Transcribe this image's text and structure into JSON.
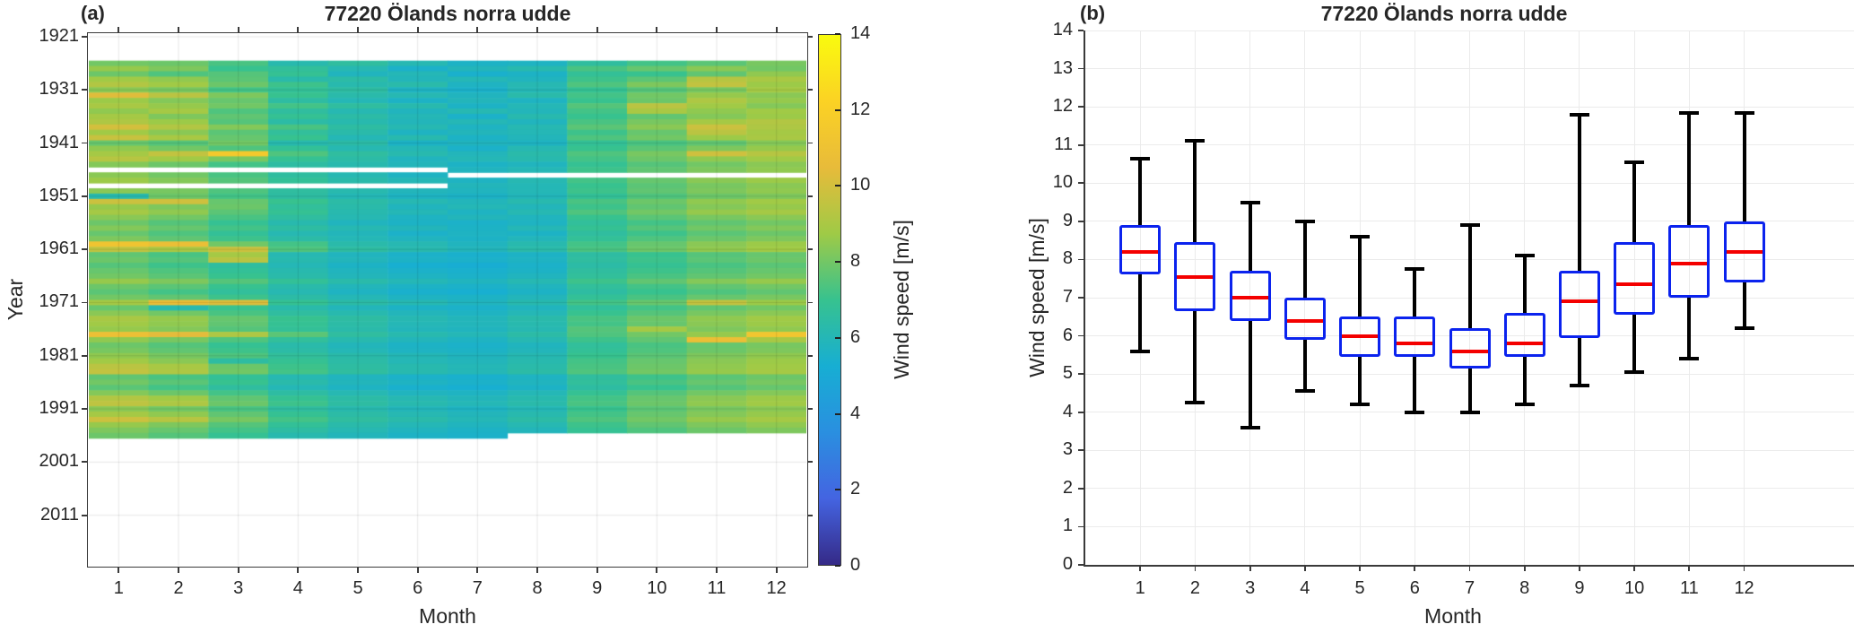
{
  "figure": {
    "panel_a": {
      "corner_label": "(a)",
      "title": "77220 Ölands norra udde",
      "xlabel": "Month",
      "ylabel": "Year",
      "xtick_labels": [
        "1",
        "2",
        "3",
        "4",
        "5",
        "6",
        "7",
        "8",
        "9",
        "10",
        "11",
        "12"
      ],
      "ytick_labels": [
        "1921",
        "1931",
        "1941",
        "1951",
        "1961",
        "1971",
        "1981",
        "1991",
        "2001",
        "2011"
      ],
      "colorbar": {
        "label": "Wind speed [m/s]",
        "tick_labels": [
          "0",
          "2",
          "4",
          "6",
          "8",
          "10",
          "12",
          "14"
        ],
        "min": 0,
        "max": 14
      }
    },
    "panel_b": {
      "corner_label": "(b)",
      "title": "77220 Ölands norra udde",
      "xlabel": "Month",
      "ylabel": "Wind speed [m/s]",
      "xtick_labels": [
        "1",
        "2",
        "3",
        "4",
        "5",
        "6",
        "7",
        "8",
        "9",
        "10",
        "11",
        "12"
      ],
      "ytick_labels": [
        "0",
        "1",
        "2",
        "3",
        "4",
        "5",
        "6",
        "7",
        "8",
        "9",
        "10",
        "11",
        "12",
        "13",
        "14"
      ]
    }
  },
  "colors": {
    "box_edge": "#0b23ee",
    "median": "#f40000",
    "whisker": "#000000",
    "grid_light": "rgba(0,0,0,0.10)",
    "axis": "#3a3a3a",
    "text": "#262626",
    "parula": [
      "#352a87",
      "#4464e1",
      "#2a8fe0",
      "#17aed3",
      "#37c28f",
      "#9fca46",
      "#e8bb3a",
      "#fbd224",
      "#f9fb0e"
    ]
  },
  "chart_data": [
    {
      "type": "heatmap",
      "title": "77220 Ölands norra udde",
      "xlabel": "Month",
      "ylabel": "Year",
      "colorbar_label": "Wind speed [m/s]",
      "colormap": "parula",
      "vmin": 0,
      "vmax": 14,
      "xticks": [
        1,
        2,
        3,
        4,
        5,
        6,
        7,
        8,
        9,
        10,
        11,
        12
      ],
      "yticks": [
        1921,
        1931,
        1941,
        1951,
        1961,
        1971,
        1981,
        1991,
        2001,
        2011
      ],
      "ylim": [
        1920.5,
        2020.5
      ],
      "grid": true,
      "year_start": 1926,
      "year_end": 1996,
      "values": [
        [
          8.0,
          7.9,
          7.3,
          6.2,
          6.6,
          6.1,
          5.6,
          5.7,
          6.6,
          7.2,
          7.6,
          8.1
        ],
        [
          8.6,
          8.2,
          7.0,
          6.7,
          6.1,
          5.5,
          5.9,
          6.2,
          7.3,
          7.8,
          8.4,
          8.0
        ],
        [
          7.9,
          7.4,
          7.5,
          6.9,
          5.8,
          6.0,
          5.4,
          5.6,
          6.8,
          7.0,
          7.7,
          8.5
        ],
        [
          8.8,
          8.5,
          7.6,
          6.3,
          6.4,
          5.9,
          6.0,
          5.8,
          7.1,
          7.6,
          9.3,
          9.0
        ],
        [
          9.2,
          8.8,
          7.9,
          7.1,
          6.2,
          6.3,
          5.7,
          6.1,
          7.4,
          8.2,
          9.6,
          8.7
        ],
        [
          8.4,
          8.1,
          7.2,
          6.8,
          6.5,
          5.7,
          5.5,
          6.0,
          6.9,
          7.5,
          8.1,
          8.9
        ],
        [
          10.3,
          9.4,
          8.2,
          7.0,
          6.3,
          6.1,
          5.8,
          6.3,
          7.2,
          8.0,
          8.6,
          8.4
        ],
        [
          8.7,
          8.3,
          7.8,
          6.5,
          6.0,
          5.6,
          5.9,
          5.7,
          7.0,
          7.9,
          9.1,
          8.6
        ],
        [
          9.0,
          8.6,
          8.0,
          7.2,
          6.6,
          6.2,
          5.6,
          6.0,
          7.5,
          9.4,
          8.8,
          8.3
        ],
        [
          8.5,
          8.9,
          7.4,
          6.6,
          6.1,
          5.8,
          6.1,
          5.9,
          7.2,
          9.0,
          8.5,
          8.8
        ],
        [
          8.9,
          8.2,
          7.7,
          6.9,
          6.4,
          6.0,
          5.5,
          6.2,
          7.0,
          7.7,
          8.3,
          8.7
        ],
        [
          9.1,
          8.7,
          7.5,
          6.4,
          6.2,
          5.9,
          6.0,
          5.8,
          7.3,
          8.1,
          8.9,
          9.2
        ],
        [
          10.0,
          9.2,
          8.3,
          7.3,
          6.5,
          6.1,
          5.7,
          6.1,
          7.6,
          8.4,
          9.8,
          9.1
        ],
        [
          8.8,
          8.4,
          7.6,
          6.7,
          6.3,
          5.7,
          5.9,
          6.0,
          7.1,
          7.8,
          9.4,
          8.9
        ],
        [
          9.7,
          9.0,
          7.8,
          7.0,
          6.0,
          6.2,
          5.6,
          5.9,
          7.4,
          8.0,
          8.7,
          9.0
        ],
        [
          7.8,
          7.5,
          8.0,
          6.2,
          6.4,
          5.6,
          5.8,
          5.7,
          6.8,
          7.3,
          7.7,
          8.3
        ],
        [
          8.5,
          8.0,
          7.4,
          6.8,
          6.1,
          6.0,
          5.5,
          6.1,
          7.0,
          7.6,
          8.2,
          8.6
        ],
        [
          8.9,
          9.6,
          11.6,
          7.4,
          6.6,
          6.2,
          5.9,
          6.3,
          7.4,
          8.1,
          9.9,
          9.3
        ],
        [
          9.3,
          8.8,
          8.1,
          6.9,
          6.4,
          5.8,
          6.0,
          6.2,
          7.2,
          7.9,
          8.5,
          8.8
        ],
        [
          8.3,
          7.9,
          7.2,
          6.5,
          6.2,
          5.9,
          5.6,
          5.8,
          6.9,
          7.5,
          8.0,
          8.4
        ],
        [
          null,
          null,
          null,
          null,
          null,
          null,
          5.8,
          6.0,
          7.1,
          7.7,
          8.2,
          8.5
        ],
        [
          8.4,
          8.0,
          7.3,
          6.6,
          6.1,
          5.7,
          null,
          null,
          null,
          null,
          null,
          null
        ],
        [
          8.7,
          8.3,
          7.5,
          6.8,
          6.3,
          6.0,
          5.7,
          6.1,
          7.2,
          7.8,
          8.4,
          8.7
        ],
        [
          null,
          null,
          null,
          null,
          null,
          null,
          5.9,
          6.0,
          7.0,
          7.6,
          8.1,
          8.4
        ],
        [
          8.4,
          8.1,
          7.4,
          6.6,
          6.2,
          5.9,
          5.8,
          6.0,
          7.1,
          7.7,
          8.2,
          8.5
        ],
        [
          6.2,
          7.9,
          7.2,
          6.5,
          6.0,
          5.7,
          5.6,
          5.9,
          6.8,
          7.4,
          7.9,
          8.2
        ],
        [
          9.8,
          9.9,
          7.8,
          7.0,
          6.4,
          6.1,
          5.9,
          6.2,
          7.3,
          7.9,
          8.5,
          8.8
        ],
        [
          8.6,
          8.2,
          7.9,
          6.7,
          6.3,
          5.8,
          6.0,
          5.9,
          7.1,
          7.7,
          8.3,
          8.6
        ],
        [
          8.9,
          8.5,
          7.6,
          6.9,
          6.2,
          6.0,
          5.7,
          6.1,
          7.4,
          8.0,
          8.6,
          8.9
        ],
        [
          8.4,
          8.0,
          7.3,
          6.6,
          6.1,
          5.7,
          5.9,
          5.8,
          7.0,
          7.6,
          8.1,
          8.4
        ],
        [
          7.9,
          7.5,
          6.9,
          6.2,
          5.8,
          5.6,
          5.5,
          5.7,
          6.7,
          7.2,
          7.7,
          8.0
        ],
        [
          8.3,
          7.8,
          7.2,
          6.5,
          6.1,
          5.9,
          5.6,
          6.0,
          6.9,
          7.5,
          8.0,
          8.3
        ],
        [
          7.8,
          7.4,
          6.8,
          6.1,
          5.9,
          5.5,
          5.7,
          5.6,
          6.6,
          7.1,
          7.6,
          7.9
        ],
        [
          8.2,
          7.7,
          7.1,
          6.4,
          6.0,
          5.8,
          5.6,
          5.9,
          6.8,
          7.4,
          7.9,
          8.2
        ],
        [
          11.2,
          10.8,
          8.0,
          7.2,
          6.3,
          6.1,
          5.8,
          6.2,
          7.2,
          7.8,
          8.4,
          8.7
        ],
        [
          9.5,
          9.0,
          9.8,
          7.4,
          6.5,
          6.2,
          5.9,
          6.3,
          7.3,
          7.9,
          8.5,
          8.8
        ],
        [
          7.7,
          7.3,
          8.9,
          6.1,
          5.8,
          5.5,
          5.4,
          5.6,
          6.5,
          7.0,
          7.5,
          7.8
        ],
        [
          7.9,
          7.5,
          9.4,
          6.2,
          5.9,
          5.6,
          5.5,
          5.7,
          6.6,
          7.1,
          7.6,
          7.9
        ],
        [
          7.5,
          7.1,
          6.6,
          6.0,
          5.6,
          5.3,
          5.2,
          5.5,
          6.4,
          6.9,
          7.3,
          7.6
        ],
        [
          7.8,
          7.4,
          6.8,
          6.2,
          5.8,
          5.5,
          5.4,
          5.6,
          6.6,
          7.1,
          7.5,
          7.8
        ],
        [
          8.0,
          7.6,
          7.0,
          6.3,
          5.9,
          5.7,
          5.5,
          5.8,
          6.7,
          7.3,
          7.7,
          8.0
        ],
        [
          8.6,
          8.2,
          7.5,
          6.8,
          6.3,
          6.0,
          5.8,
          6.1,
          7.1,
          7.7,
          8.3,
          8.6
        ],
        [
          7.9,
          7.6,
          7.0,
          6.3,
          5.9,
          5.6,
          5.5,
          5.8,
          6.7,
          7.2,
          7.7,
          8.0
        ],
        [
          7.6,
          7.2,
          6.7,
          6.1,
          5.7,
          5.4,
          5.3,
          5.6,
          6.5,
          7.0,
          7.4,
          7.7
        ],
        [
          8.0,
          7.7,
          7.1,
          6.4,
          6.0,
          5.7,
          5.6,
          5.9,
          6.8,
          7.3,
          7.8,
          8.1
        ],
        [
          8.9,
          10.7,
          10.2,
          6.9,
          6.4,
          6.1,
          5.8,
          6.2,
          7.2,
          7.8,
          9.6,
          8.7
        ],
        [
          7.8,
          6.2,
          7.0,
          6.3,
          5.9,
          5.6,
          5.5,
          5.8,
          6.7,
          7.2,
          7.7,
          8.0
        ],
        [
          8.4,
          8.0,
          7.3,
          6.6,
          6.2,
          5.9,
          5.7,
          6.0,
          7.0,
          7.5,
          8.1,
          8.4
        ],
        [
          9.0,
          8.6,
          7.8,
          7.0,
          6.5,
          6.1,
          5.9,
          6.3,
          7.3,
          7.9,
          8.5,
          8.8
        ],
        [
          8.8,
          8.5,
          7.7,
          6.9,
          6.4,
          6.0,
          5.9,
          6.2,
          7.2,
          7.8,
          8.4,
          8.7
        ],
        [
          8.6,
          8.3,
          7.5,
          6.8,
          6.3,
          5.9,
          5.8,
          6.1,
          7.5,
          8.9,
          8.2,
          8.5
        ],
        [
          10.9,
          10.4,
          9.1,
          7.6,
          6.6,
          6.2,
          6.0,
          6.4,
          7.4,
          8.0,
          8.6,
          11.3
        ],
        [
          8.5,
          8.1,
          7.4,
          6.7,
          6.2,
          5.9,
          5.7,
          6.1,
          7.1,
          7.7,
          10.8,
          9.0
        ],
        [
          7.9,
          7.5,
          6.9,
          6.3,
          5.9,
          5.6,
          5.5,
          5.8,
          6.7,
          7.3,
          7.8,
          8.1
        ],
        [
          8.1,
          7.7,
          7.1,
          6.4,
          6.0,
          5.7,
          5.6,
          5.9,
          6.8,
          7.4,
          7.9,
          8.2
        ],
        [
          8.5,
          8.1,
          7.4,
          6.7,
          6.3,
          6.0,
          5.8,
          6.1,
          7.0,
          7.6,
          8.2,
          8.5
        ],
        [
          8.8,
          8.4,
          6.5,
          6.9,
          6.4,
          6.0,
          5.9,
          6.2,
          7.2,
          7.8,
          8.4,
          8.7
        ],
        [
          9.4,
          9.0,
          7.9,
          7.1,
          6.5,
          6.2,
          6.0,
          6.3,
          7.3,
          7.9,
          8.5,
          8.8
        ],
        [
          9.6,
          9.1,
          8.0,
          7.2,
          6.6,
          6.2,
          6.0,
          6.4,
          7.4,
          8.0,
          8.6,
          8.9
        ],
        [
          7.7,
          7.3,
          6.8,
          6.1,
          5.8,
          5.5,
          5.4,
          5.7,
          6.6,
          7.1,
          7.6,
          7.9
        ],
        [
          8.0,
          7.6,
          7.0,
          6.3,
          5.9,
          5.7,
          5.5,
          5.8,
          6.7,
          7.3,
          7.8,
          8.1
        ],
        [
          7.6,
          7.2,
          6.6,
          6.0,
          5.7,
          5.4,
          5.3,
          5.6,
          6.5,
          7.0,
          7.5,
          7.8
        ],
        [
          8.3,
          7.9,
          7.2,
          6.5,
          6.1,
          5.8,
          5.7,
          6.0,
          6.9,
          7.5,
          8.0,
          8.3
        ],
        [
          9.2,
          8.8,
          7.7,
          6.9,
          6.4,
          6.1,
          5.9,
          6.2,
          7.2,
          7.8,
          8.4,
          8.7
        ],
        [
          9.5,
          9.1,
          7.9,
          7.1,
          6.5,
          6.2,
          6.0,
          6.3,
          7.3,
          7.9,
          8.5,
          8.8
        ],
        [
          8.4,
          8.0,
          7.3,
          6.6,
          6.2,
          5.9,
          5.7,
          6.0,
          7.0,
          7.6,
          8.1,
          8.4
        ],
        [
          8.9,
          8.5,
          7.7,
          6.9,
          6.4,
          6.1,
          5.9,
          6.2,
          7.2,
          7.8,
          8.3,
          8.6
        ],
        [
          9.8,
          9.3,
          8.1,
          7.2,
          6.6,
          6.3,
          6.0,
          6.4,
          7.4,
          8.0,
          8.6,
          8.9
        ],
        [
          8.6,
          8.2,
          7.5,
          6.8,
          6.3,
          6.0,
          5.8,
          6.1,
          7.1,
          7.7,
          8.2,
          8.5
        ],
        [
          8.2,
          7.8,
          7.2,
          6.5,
          6.1,
          5.8,
          5.6,
          5.9,
          6.9,
          7.4,
          7.9,
          8.2
        ],
        [
          7.9,
          7.5,
          6.9,
          6.2,
          5.9,
          5.6,
          5.5,
          null,
          null,
          null,
          null,
          null
        ]
      ]
    },
    {
      "type": "box",
      "title": "77220 Ölands norra udde",
      "xlabel": "Month",
      "ylabel": "Wind speed [m/s]",
      "categories": [
        1,
        2,
        3,
        4,
        5,
        6,
        7,
        8,
        9,
        10,
        11,
        12
      ],
      "ylim": [
        0,
        14
      ],
      "grid": true,
      "stats": [
        {
          "month": 1,
          "whislo": 5.6,
          "q1": 7.6,
          "med": 8.2,
          "q3": 8.9,
          "whishi": 10.65
        },
        {
          "month": 2,
          "whislo": 4.25,
          "q1": 6.65,
          "med": 7.55,
          "q3": 8.45,
          "whishi": 11.1
        },
        {
          "month": 3,
          "whislo": 3.6,
          "q1": 6.4,
          "med": 7.0,
          "q3": 7.7,
          "whishi": 9.5
        },
        {
          "month": 4,
          "whislo": 4.55,
          "q1": 5.9,
          "med": 6.4,
          "q3": 7.0,
          "whishi": 9.0
        },
        {
          "month": 5,
          "whislo": 4.2,
          "q1": 5.45,
          "med": 6.0,
          "q3": 6.5,
          "whishi": 8.6
        },
        {
          "month": 6,
          "whislo": 4.0,
          "q1": 5.45,
          "med": 5.8,
          "q3": 6.5,
          "whishi": 7.75
        },
        {
          "month": 7,
          "whislo": 4.0,
          "q1": 5.15,
          "med": 5.6,
          "q3": 6.2,
          "whishi": 8.9
        },
        {
          "month": 8,
          "whislo": 4.2,
          "q1": 5.45,
          "med": 5.8,
          "q3": 6.6,
          "whishi": 8.1
        },
        {
          "month": 9,
          "whislo": 4.7,
          "q1": 5.95,
          "med": 6.9,
          "q3": 7.7,
          "whishi": 11.8
        },
        {
          "month": 10,
          "whislo": 5.05,
          "q1": 6.55,
          "med": 7.35,
          "q3": 8.45,
          "whishi": 10.55
        },
        {
          "month": 11,
          "whislo": 5.4,
          "q1": 7.0,
          "med": 7.9,
          "q3": 8.9,
          "whishi": 11.85
        },
        {
          "month": 12,
          "whislo": 6.2,
          "q1": 7.4,
          "med": 8.2,
          "q3": 9.0,
          "whishi": 11.85
        }
      ]
    }
  ]
}
